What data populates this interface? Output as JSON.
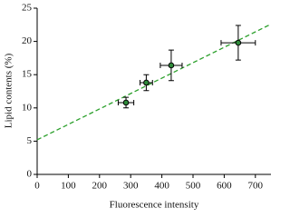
{
  "chart_data": {
    "type": "scatter",
    "x_label": "Fluorescence intensity",
    "y_label": "Lipid contents (%)",
    "series": [
      {
        "color": "#2e8b3a",
        "x": [
          285,
          350,
          430,
          645
        ],
        "values": [
          10.8,
          13.8,
          16.4,
          19.8
        ],
        "xerr": [
          25,
          20,
          35,
          55
        ],
        "yerr": [
          0.8,
          1.2,
          2.3,
          2.6
        ]
      }
    ],
    "fit": {
      "color": "#2ca02c",
      "x": [
        0,
        750
      ],
      "y": [
        5.2,
        22.6
      ]
    },
    "xlim": [
      0,
      750
    ],
    "xticks": [
      0,
      100,
      200,
      300,
      400,
      500,
      600,
      700
    ],
    "ylim": [
      0,
      25
    ],
    "yticks": [
      0,
      5,
      10,
      15,
      20,
      25
    ]
  }
}
